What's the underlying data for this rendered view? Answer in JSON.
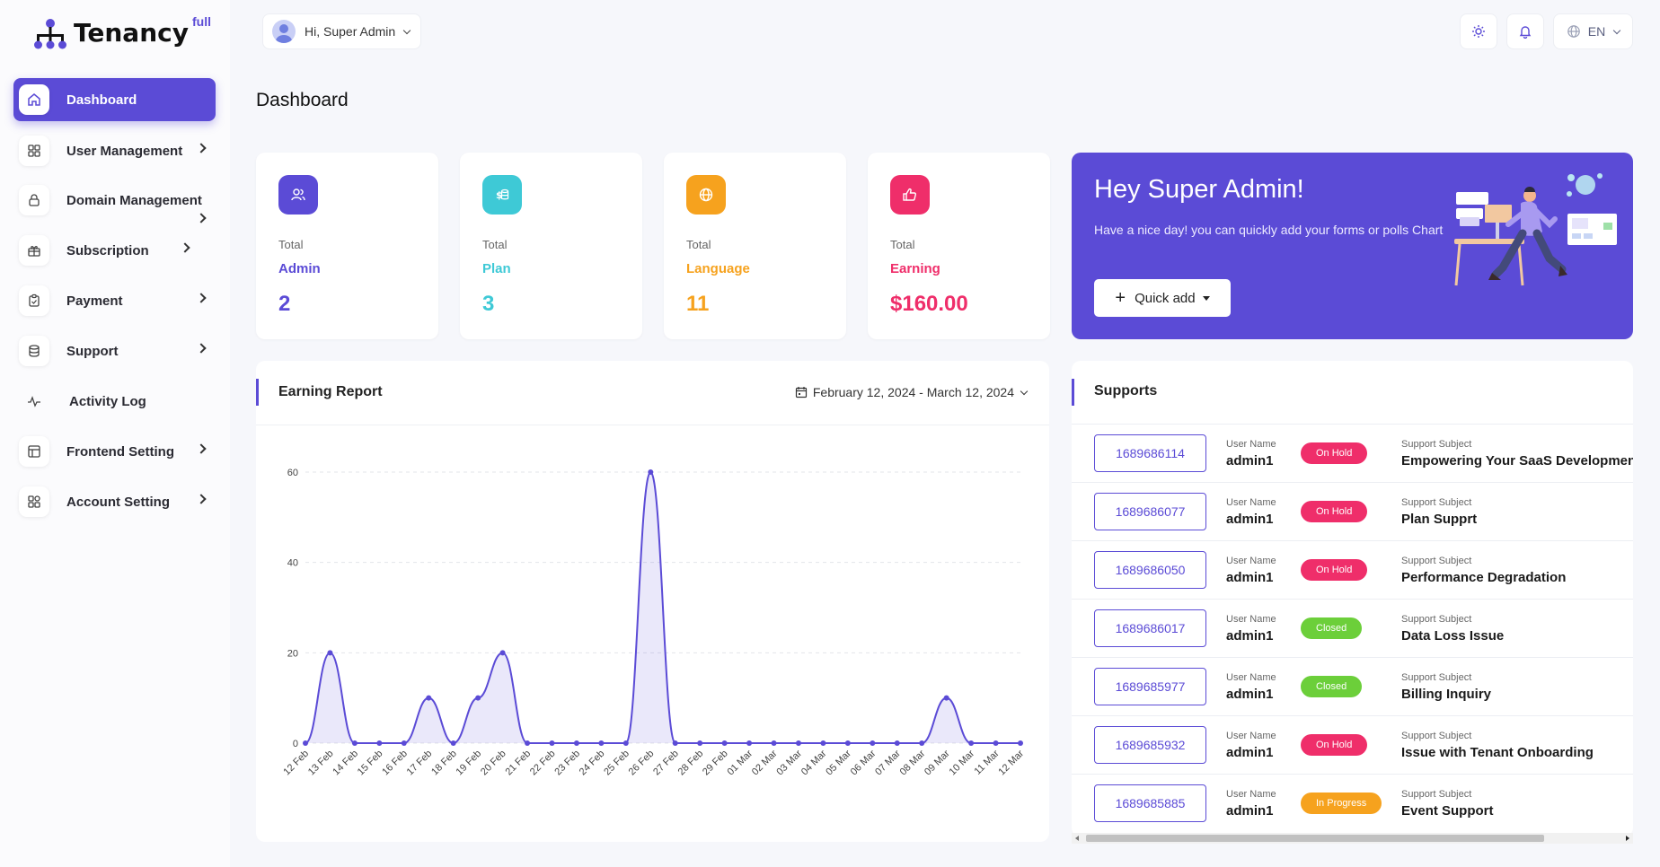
{
  "brand": {
    "name": "Tenancy",
    "superscript": "full"
  },
  "header": {
    "greeting": "Hi, Super Admin",
    "language": "EN"
  },
  "sidebar": {
    "items": [
      {
        "label": "Dashboard",
        "icon": "home-icon",
        "active": true
      },
      {
        "label": "User Management",
        "icon": "grid-icon"
      },
      {
        "label": "Domain Management",
        "icon": "lock-icon"
      },
      {
        "label": "Subscription",
        "icon": "gift-icon"
      },
      {
        "label": "Payment",
        "icon": "clipboard-icon"
      },
      {
        "label": "Support",
        "icon": "database-icon"
      },
      {
        "label": "Activity Log",
        "icon": "pulse-icon"
      },
      {
        "label": "Frontend Setting",
        "icon": "table-icon"
      },
      {
        "label": "Account Setting",
        "icon": "grid-icon"
      }
    ]
  },
  "page": {
    "title": "Dashboard"
  },
  "stats": [
    {
      "total": "Total",
      "label": "Admin",
      "value": "2",
      "color": "#5b4bd6",
      "icon": "users-icon"
    },
    {
      "total": "Total",
      "label": "Plan",
      "value": "3",
      "color": "#3ec9d6",
      "icon": "money-icon"
    },
    {
      "total": "Total",
      "label": "Language",
      "value": "11",
      "color": "#f6a21e",
      "icon": "globe-icon"
    },
    {
      "total": "Total",
      "label": "Earning",
      "value": "$160.00",
      "color": "#ef2e6a",
      "icon": "thumbs-up-icon"
    }
  ],
  "welcome": {
    "title": "Hey Super Admin!",
    "text": "Have a nice day! you can quickly add your forms or polls Chart",
    "button": "Quick add"
  },
  "earning": {
    "title": "Earning Report",
    "date_range": "February 12, 2024 - March 12, 2024"
  },
  "chart_data": {
    "type": "area",
    "title": "Earning Report",
    "xlabel": "",
    "ylabel": "",
    "ylim": [
      0,
      60
    ],
    "yticks": [
      0,
      20,
      40,
      60
    ],
    "grid": true,
    "categories": [
      "12 Feb",
      "13 Feb",
      "14 Feb",
      "15 Feb",
      "16 Feb",
      "17 Feb",
      "18 Feb",
      "19 Feb",
      "20 Feb",
      "21 Feb",
      "22 Feb",
      "23 Feb",
      "24 Feb",
      "25 Feb",
      "26 Feb",
      "27 Feb",
      "28 Feb",
      "29 Feb",
      "01 Mar",
      "02 Mar",
      "03 Mar",
      "04 Mar",
      "05 Mar",
      "06 Mar",
      "07 Mar",
      "08 Mar",
      "09 Mar",
      "10 Mar",
      "11 Mar",
      "12 Mar"
    ],
    "values": [
      0,
      20,
      0,
      0,
      0,
      10,
      0,
      10,
      20,
      0,
      0,
      0,
      0,
      0,
      60,
      0,
      0,
      0,
      0,
      0,
      0,
      0,
      0,
      0,
      0,
      0,
      10,
      0,
      0,
      0
    ],
    "color": "#5b4bd6"
  },
  "supports": {
    "title": "Supports",
    "user_label": "User Name",
    "subject_label": "Support Subject",
    "rows": [
      {
        "ticket": "1689686114",
        "user": "admin1",
        "status": "On Hold",
        "status_color": "#ef2e6a",
        "subject": "Empowering Your SaaS Developmen"
      },
      {
        "ticket": "1689686077",
        "user": "admin1",
        "status": "On Hold",
        "status_color": "#ef2e6a",
        "subject": "Plan Supprt"
      },
      {
        "ticket": "1689686050",
        "user": "admin1",
        "status": "On Hold",
        "status_color": "#ef2e6a",
        "subject": "Performance Degradation"
      },
      {
        "ticket": "1689686017",
        "user": "admin1",
        "status": "Closed",
        "status_color": "#6ccf3a",
        "subject": "Data Loss Issue"
      },
      {
        "ticket": "1689685977",
        "user": "admin1",
        "status": "Closed",
        "status_color": "#6ccf3a",
        "subject": "Billing Inquiry"
      },
      {
        "ticket": "1689685932",
        "user": "admin1",
        "status": "On Hold",
        "status_color": "#ef2e6a",
        "subject": "Issue with Tenant Onboarding"
      },
      {
        "ticket": "1689685885",
        "user": "admin1",
        "status": "In Progress",
        "status_color": "#f6a21e",
        "subject": "Event Support"
      }
    ]
  }
}
